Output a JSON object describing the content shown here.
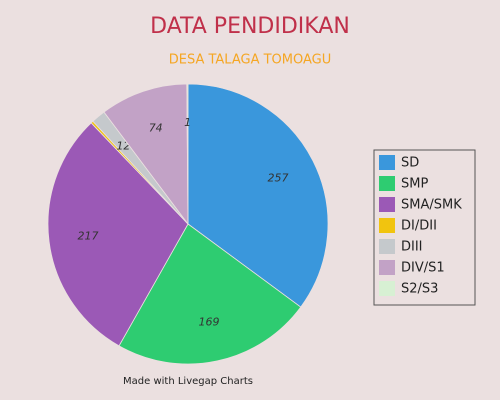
{
  "chart_data": {
    "type": "pie",
    "title": "DATA PENDIDIKAN",
    "subtitle": "DESA TALAGA TOMOAGU",
    "credit": "Made with Livegap Charts",
    "categories": [
      "SD",
      "SMP",
      "SMA/SMK",
      "DI/DII",
      "DIII",
      "DIV/S1",
      "S2/S3"
    ],
    "values": [
      257,
      169,
      217,
      2,
      12,
      74,
      1
    ],
    "value_labels": [
      "257",
      "169",
      "217",
      null,
      "12",
      "74",
      "1"
    ],
    "colors": [
      "#3a97dc",
      "#2ecc71",
      "#9b59b6",
      "#f1c40f",
      "#c5c9cc",
      "#c2a2c6",
      "#d7f0d3"
    ],
    "legend": "right"
  }
}
